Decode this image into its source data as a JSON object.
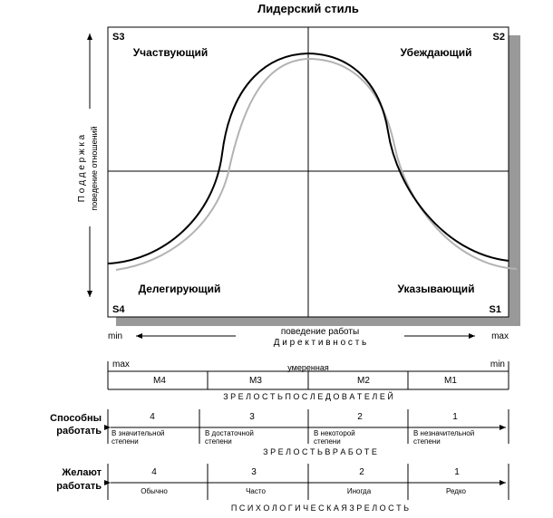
{
  "title": "Лидерский стиль",
  "quadrants": {
    "s3": {
      "code": "S3",
      "label": "Участвующий"
    },
    "s2": {
      "code": "S2",
      "label": "Убеждающий"
    },
    "s4": {
      "code": "S4",
      "label": "Делегирующий"
    },
    "s1": {
      "code": "S1",
      "label": "Указывающий"
    }
  },
  "y_axis": {
    "title": "П о д д е р ж к а",
    "subtitle": "поведение отношений"
  },
  "x_axis": {
    "subtitle": "поведение работы",
    "title": "Д и р е к т и в н о с т ь",
    "min": "min",
    "max": "max"
  },
  "maturity_scale": {
    "left": "max",
    "right": "min",
    "middle": "умеренная",
    "levels": [
      "M4",
      "M3",
      "M2",
      "M1"
    ],
    "caption": "З Р Е Л О С Т Ь   П О С Л Е Д О В А Т Е Л Е Й"
  },
  "ability": {
    "label_line1": "Способны",
    "label_line2": "работать",
    "numbers": [
      "4",
      "3",
      "2",
      "1"
    ],
    "desc": [
      [
        "В значительной",
        "степени"
      ],
      [
        "В достаточной",
        "степени"
      ],
      [
        "В некоторой",
        "степени"
      ],
      [
        "В незначительной",
        "степени"
      ]
    ],
    "caption": "З Р Е Л О С Т Ь   В   Р А Б О Т Е"
  },
  "willingness": {
    "label_line1": "Желают",
    "label_line2": "работать",
    "numbers": [
      "4",
      "3",
      "2",
      "1"
    ],
    "desc": [
      "Обычно",
      "Часто",
      "Иногда",
      "Редко"
    ],
    "caption": "П С И Х О Л О Г И Ч Е С К А Я   З Р Е Л О С Т Ь"
  },
  "colors": {
    "line": "#000000",
    "shadow": "#999999",
    "curve_shadow": "#b3b3b3"
  }
}
